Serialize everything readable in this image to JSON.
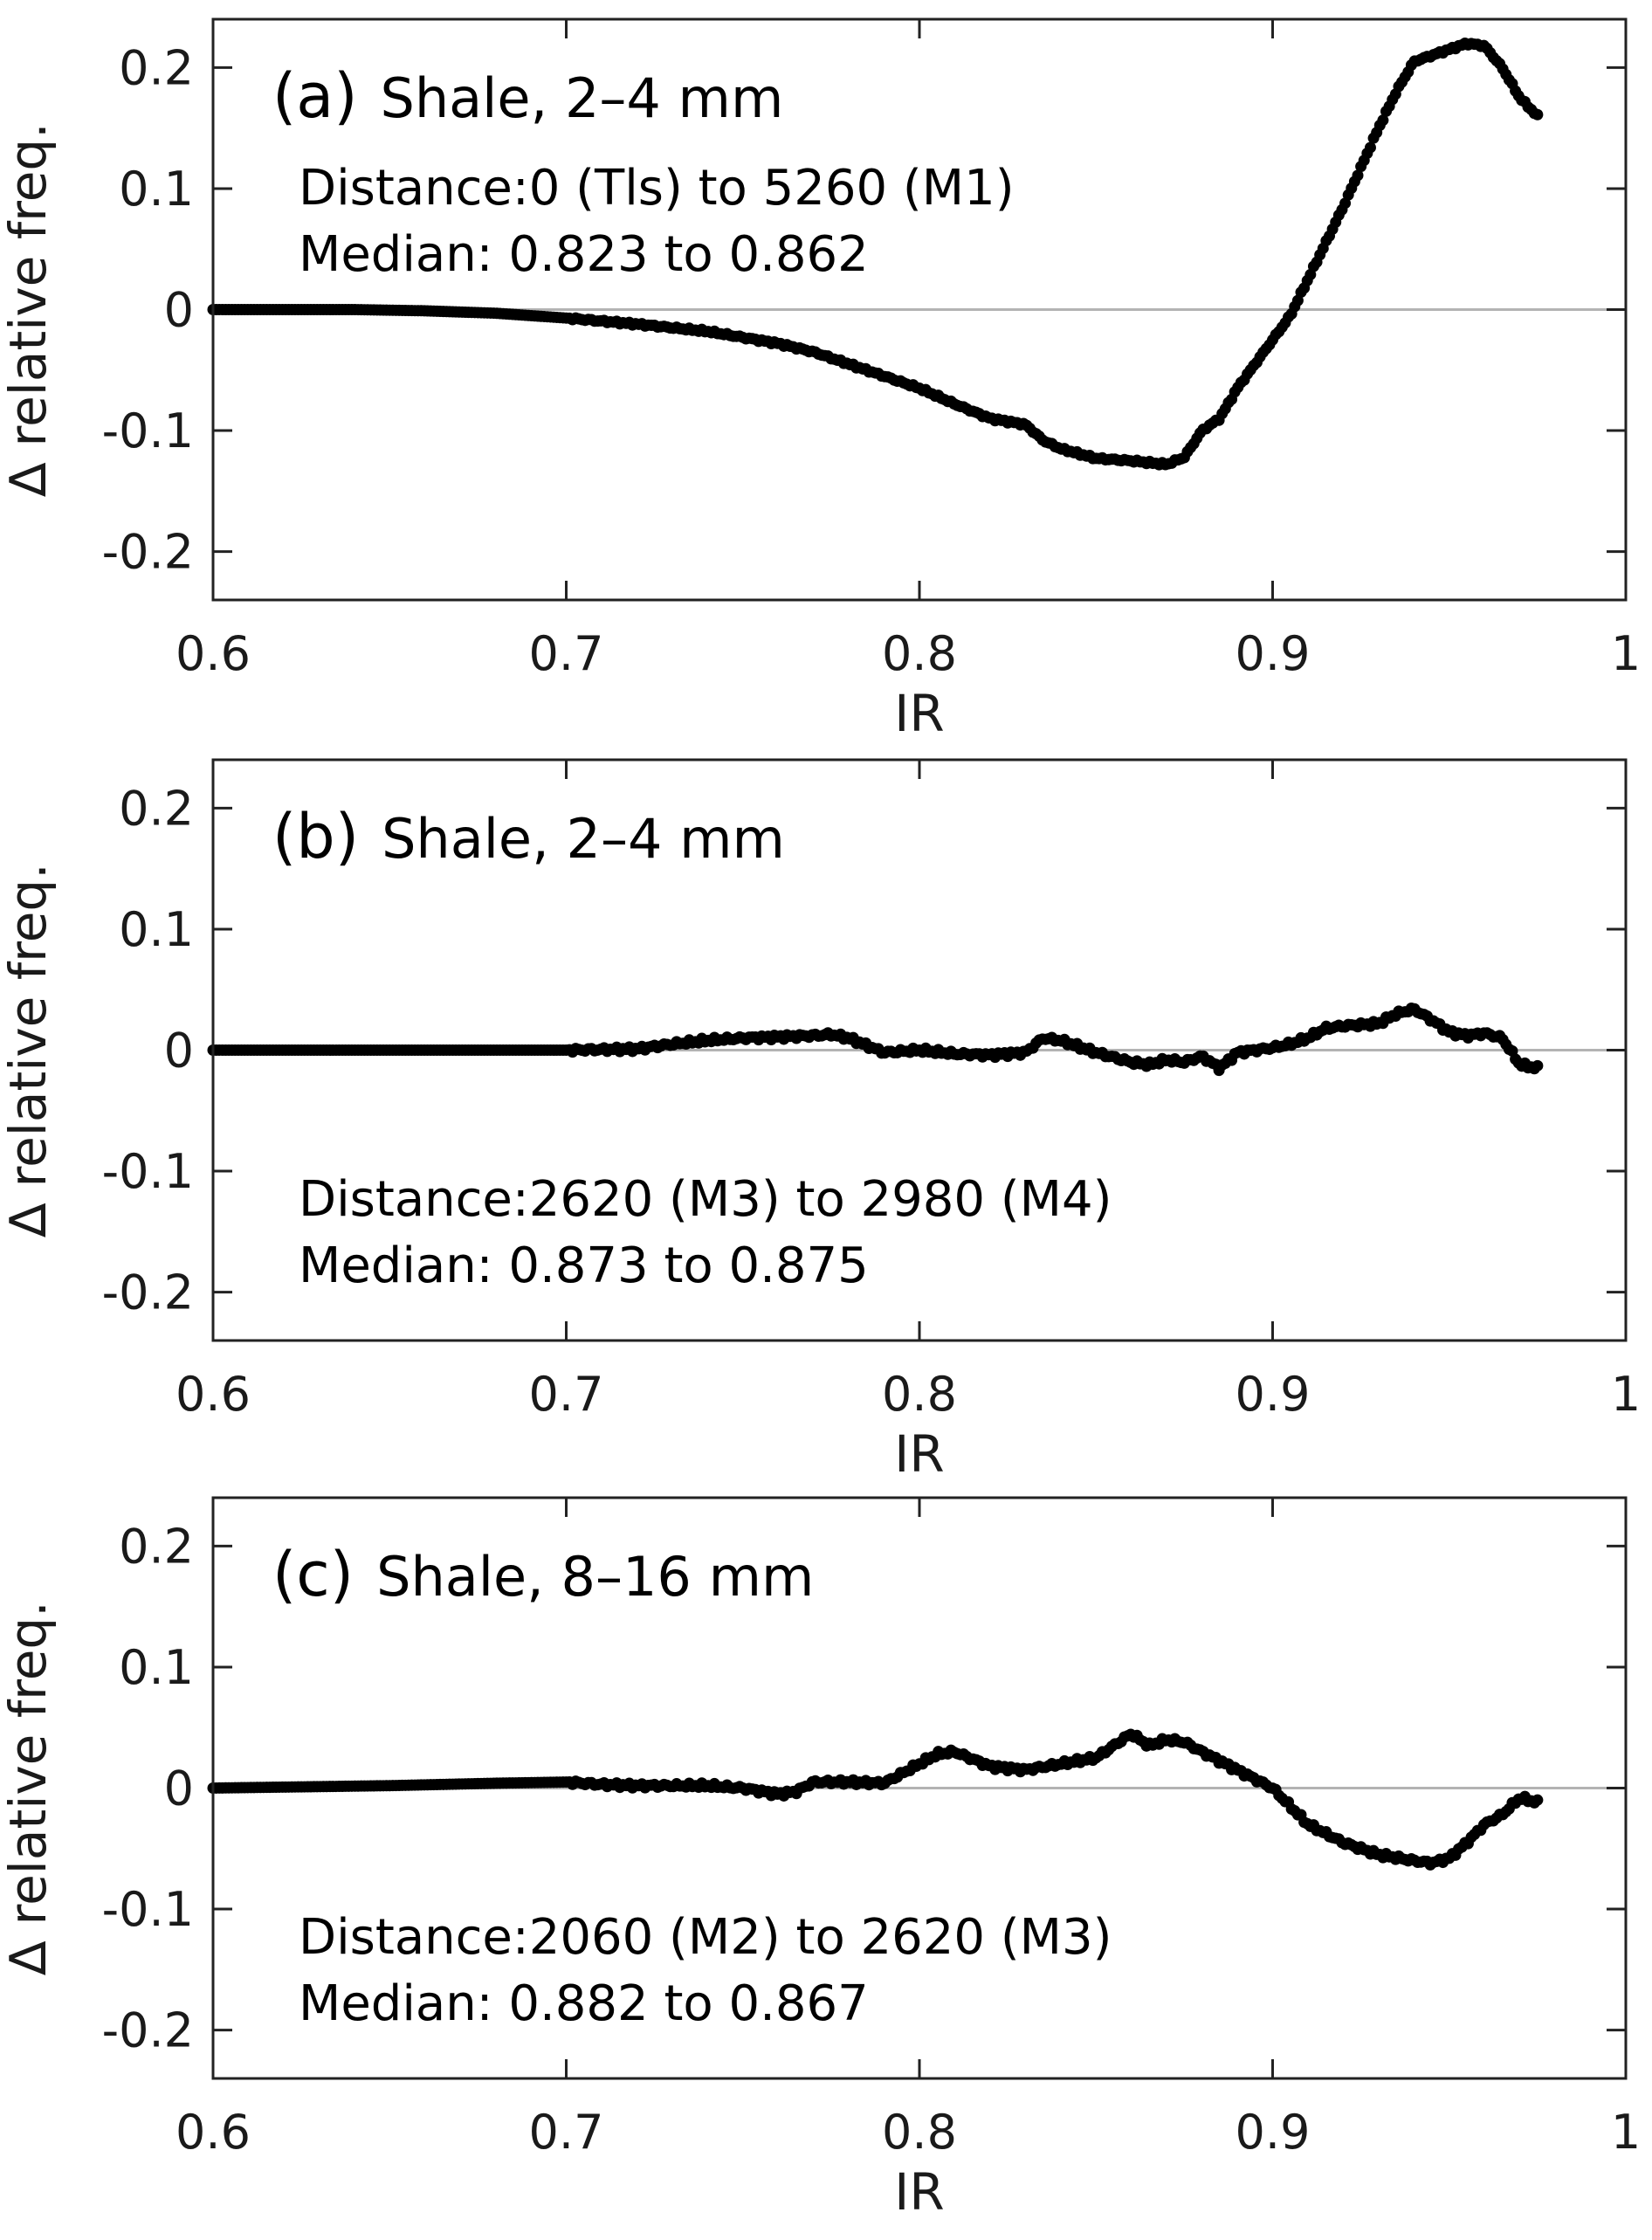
{
  "chart_data": [
    {
      "type": "scatter",
      "panel": "a",
      "title_tag": "(a)",
      "title": "Shale, 2–4 mm",
      "annotations": [
        "Distance:0 (Tls) to 5260 (M1)",
        "Median: 0.823 to 0.862"
      ],
      "annotation_position": "top-left",
      "xlabel": "IR",
      "ylabel": "∆ relative freq.",
      "xlim": [
        0.6,
        1.0
      ],
      "ylim": [
        -0.24,
        0.24
      ],
      "xticks": [
        "0.6",
        "0.7",
        "0.8",
        "0.9",
        "1"
      ],
      "yticks": [
        "-0.2",
        "-0.1",
        "0",
        "0.1",
        "0.2"
      ],
      "reference_line": 0,
      "x": [
        0.6,
        0.62,
        0.64,
        0.66,
        0.68,
        0.7,
        0.72,
        0.74,
        0.76,
        0.77,
        0.78,
        0.79,
        0.8,
        0.81,
        0.82,
        0.83,
        0.835,
        0.84,
        0.85,
        0.86,
        0.87,
        0.875,
        0.88,
        0.885,
        0.89,
        0.9,
        0.905,
        0.91,
        0.92,
        0.93,
        0.935,
        0.94,
        0.945,
        0.95,
        0.955,
        0.96,
        0.965,
        0.97,
        0.975
      ],
      "y": [
        0.0,
        0.0,
        0.0,
        -0.001,
        -0.003,
        -0.007,
        -0.012,
        -0.018,
        -0.028,
        -0.035,
        -0.045,
        -0.055,
        -0.065,
        -0.078,
        -0.09,
        -0.095,
        -0.108,
        -0.115,
        -0.123,
        -0.125,
        -0.128,
        -0.122,
        -0.1,
        -0.09,
        -0.065,
        -0.025,
        -0.005,
        0.025,
        0.085,
        0.15,
        0.18,
        0.205,
        0.21,
        0.215,
        0.22,
        0.218,
        0.2,
        0.175,
        0.16
      ]
    },
    {
      "type": "scatter",
      "panel": "b",
      "title_tag": "(b)",
      "title": "Shale, 2–4 mm",
      "annotations": [
        "Distance:2620 (M3) to 2980 (M4)",
        "Median: 0.873 to 0.875"
      ],
      "annotation_position": "bottom-left",
      "xlabel": "IR",
      "ylabel": "∆ relative freq.",
      "xlim": [
        0.6,
        1.0
      ],
      "ylim": [
        -0.24,
        0.24
      ],
      "xticks": [
        "0.6",
        "0.7",
        "0.8",
        "0.9",
        "1"
      ],
      "yticks": [
        "-0.2",
        "-0.1",
        "0",
        "0.1",
        "0.2"
      ],
      "reference_line": 0,
      "x": [
        0.6,
        0.65,
        0.7,
        0.72,
        0.73,
        0.74,
        0.75,
        0.76,
        0.77,
        0.775,
        0.78,
        0.79,
        0.8,
        0.81,
        0.82,
        0.83,
        0.835,
        0.84,
        0.85,
        0.86,
        0.865,
        0.87,
        0.875,
        0.88,
        0.885,
        0.89,
        0.9,
        0.905,
        0.91,
        0.915,
        0.92,
        0.93,
        0.935,
        0.94,
        0.945,
        0.95,
        0.955,
        0.96,
        0.965,
        0.97,
        0.975
      ],
      "y": [
        0.0,
        0.0,
        0.0,
        0.001,
        0.005,
        0.008,
        0.01,
        0.011,
        0.012,
        0.013,
        0.01,
        -0.002,
        0.0,
        -0.003,
        -0.004,
        -0.002,
        0.01,
        0.008,
        -0.002,
        -0.01,
        -0.012,
        -0.008,
        -0.01,
        -0.005,
        -0.015,
        -0.002,
        0.002,
        0.005,
        0.01,
        0.018,
        0.02,
        0.022,
        0.03,
        0.034,
        0.025,
        0.015,
        0.012,
        0.014,
        0.01,
        -0.012,
        -0.015
      ]
    },
    {
      "type": "scatter",
      "panel": "c",
      "title_tag": "(c)",
      "title": "Shale, 8–16 mm",
      "annotations": [
        "Distance:2060 (M2) to 2620 (M3)",
        "Median: 0.882 to 0.867"
      ],
      "annotation_position": "bottom-left",
      "xlabel": "IR",
      "ylabel": "∆ relative freq.",
      "xlim": [
        0.6,
        1.0
      ],
      "ylim": [
        -0.24,
        0.24
      ],
      "xticks": [
        "0.6",
        "0.7",
        "0.8",
        "0.9",
        "1"
      ],
      "yticks": [
        "-0.2",
        "-0.1",
        "0",
        "0.1",
        "0.2"
      ],
      "reference_line": 0,
      "x": [
        0.6,
        0.65,
        0.68,
        0.7,
        0.71,
        0.72,
        0.74,
        0.75,
        0.76,
        0.765,
        0.77,
        0.78,
        0.79,
        0.8,
        0.805,
        0.81,
        0.82,
        0.83,
        0.84,
        0.85,
        0.86,
        0.865,
        0.87,
        0.875,
        0.88,
        0.89,
        0.9,
        0.905,
        0.91,
        0.92,
        0.93,
        0.94,
        0.945,
        0.95,
        0.955,
        0.96,
        0.965,
        0.97,
        0.975
      ],
      "y": [
        0.0,
        0.002,
        0.004,
        0.005,
        0.003,
        0.002,
        0.002,
        0.0,
        -0.005,
        -0.003,
        0.005,
        0.005,
        0.004,
        0.02,
        0.028,
        0.03,
        0.018,
        0.015,
        0.02,
        0.025,
        0.045,
        0.035,
        0.04,
        0.038,
        0.03,
        0.015,
        0.0,
        -0.015,
        -0.03,
        -0.045,
        -0.055,
        -0.06,
        -0.062,
        -0.058,
        -0.045,
        -0.03,
        -0.022,
        -0.008,
        -0.012
      ]
    }
  ]
}
